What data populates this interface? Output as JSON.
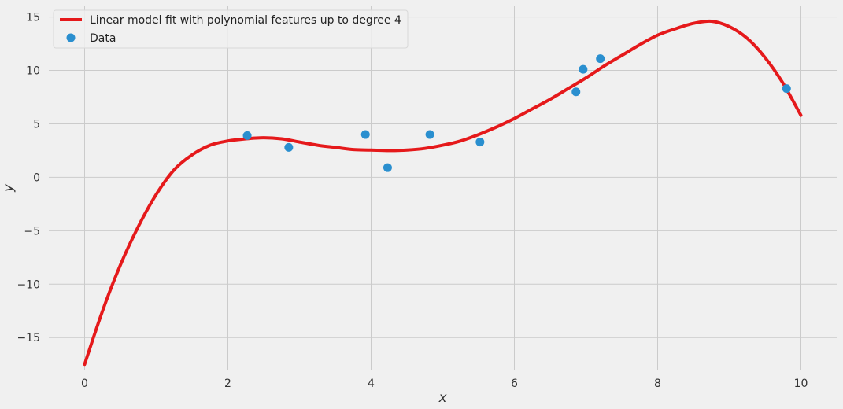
{
  "chart_data": {
    "type": "scatter",
    "title": "",
    "xlabel": "x",
    "ylabel": "y",
    "xlim": [
      -0.5,
      10.5
    ],
    "ylim": [
      -18,
      16
    ],
    "xticks": [
      0,
      2,
      4,
      6,
      8,
      10
    ],
    "yticks": [
      -15,
      -10,
      -5,
      0,
      5,
      10,
      15
    ],
    "xtick_labels": [
      "0",
      "2",
      "4",
      "6",
      "8",
      "10"
    ],
    "ytick_labels": [
      "−15",
      "−10",
      "−5",
      "0",
      "5",
      "10",
      "15"
    ],
    "grid": true,
    "legend_position": "top-left",
    "series": [
      {
        "name": "Linear model fit with polynomial features up to degree 4",
        "kind": "line",
        "color": "#e5191b",
        "x": [
          0,
          0.25,
          0.5,
          0.75,
          1.0,
          1.25,
          1.5,
          1.75,
          2.0,
          2.25,
          2.5,
          2.75,
          3.0,
          3.25,
          3.5,
          3.75,
          4.0,
          4.25,
          4.5,
          4.75,
          5.0,
          5.25,
          5.5,
          5.75,
          6.0,
          6.25,
          6.5,
          6.75,
          7.0,
          7.25,
          7.5,
          7.75,
          8.0,
          8.25,
          8.5,
          8.75,
          9.0,
          9.25,
          9.5,
          9.75,
          10.0
        ],
        "y": [
          -17.5,
          -12.5,
          -8.2,
          -4.6,
          -1.6,
          0.7,
          2.1,
          3.0,
          3.4,
          3.6,
          3.7,
          3.6,
          3.3,
          3.0,
          2.8,
          2.6,
          2.55,
          2.5,
          2.55,
          2.7,
          3.0,
          3.4,
          4.0,
          4.7,
          5.5,
          6.4,
          7.3,
          8.3,
          9.3,
          10.4,
          11.4,
          12.4,
          13.3,
          13.9,
          14.4,
          14.6,
          14.1,
          13.0,
          11.2,
          8.8,
          5.8
        ]
      },
      {
        "name": "Data",
        "kind": "points",
        "color": "#2a8fcf",
        "x": [
          2.27,
          2.85,
          3.92,
          4.23,
          4.82,
          5.52,
          6.86,
          6.96,
          7.2,
          9.8
        ],
        "y": [
          3.9,
          2.8,
          4.0,
          0.9,
          4.0,
          3.3,
          8.0,
          10.1,
          11.1,
          8.3
        ]
      }
    ]
  }
}
